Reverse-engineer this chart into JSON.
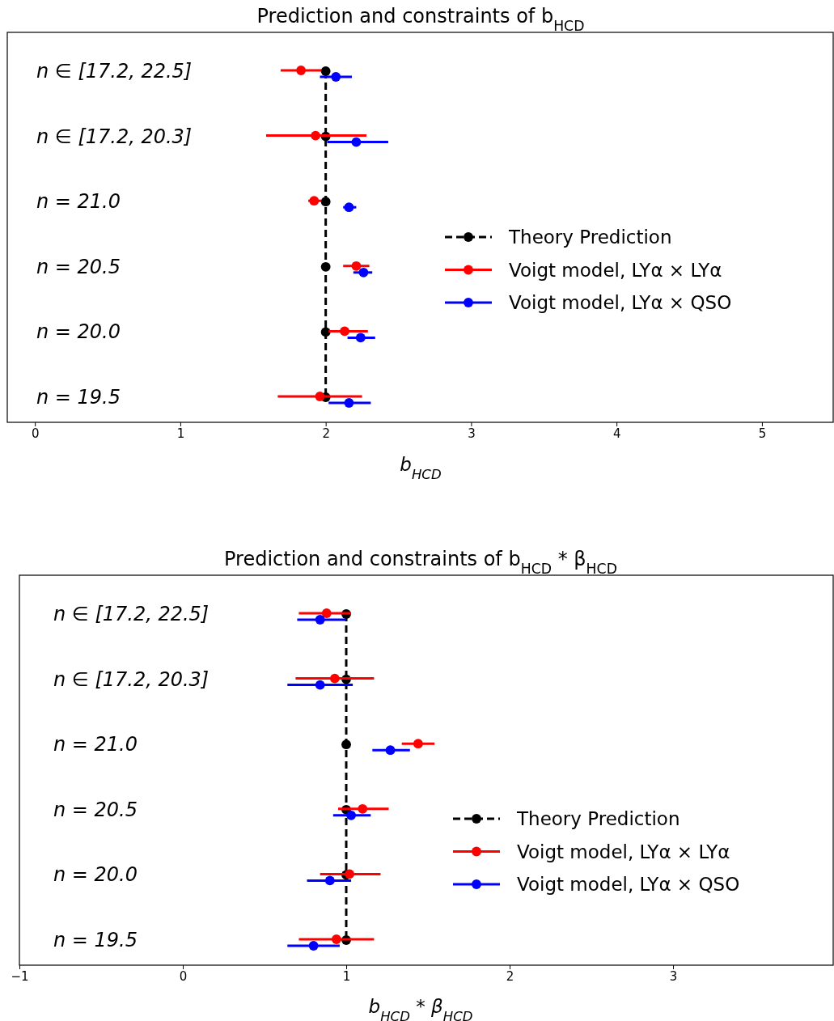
{
  "chart_data": [
    {
      "type": "scatter",
      "orientation": "horizontal",
      "title": "Prediction and constraints of b$_{HCD}$",
      "xlabel": "b$_{HCD}$",
      "categories": [
        "n ∈ [17.2, 22.5]",
        "n ∈ [17.2, 20.3]",
        "n = 21.0",
        "n = 20.5",
        "n = 20.0",
        "n = 19.5"
      ],
      "xlim": [
        -0.19,
        5.49
      ],
      "xticks": [
        0,
        1,
        2,
        3,
        4,
        5
      ],
      "grid": false,
      "legend": "right",
      "marker": "circle",
      "series": [
        {
          "name": "Theory Prediction",
          "type": "line",
          "line_style": "dashed",
          "color": "#000000",
          "values": [
            2,
            2,
            2,
            2,
            2,
            2
          ]
        },
        {
          "name": "Voigt model, LYα × LYα",
          "color": "#ff0000",
          "values": [
            1.83,
            1.93,
            1.92,
            2.21,
            2.13,
            1.96
          ],
          "errors": [
            [
              1.69,
              1.97
            ],
            [
              1.59,
              2.28
            ],
            [
              1.88,
              1.97
            ],
            [
              2.12,
              2.3
            ],
            [
              2.02,
              2.29
            ],
            [
              1.67,
              2.25
            ]
          ]
        },
        {
          "name": "Voigt model, LYα × QSO",
          "color": "#0000ff",
          "values": [
            2.07,
            2.21,
            2.16,
            2.26,
            2.24,
            2.16
          ],
          "errors": [
            [
              1.96,
              2.18
            ],
            [
              2.01,
              2.43
            ],
            [
              2.12,
              2.21
            ],
            [
              2.19,
              2.32
            ],
            [
              2.15,
              2.34
            ],
            [
              2.02,
              2.31
            ]
          ]
        }
      ]
    },
    {
      "type": "scatter",
      "orientation": "horizontal",
      "title": "Prediction and constraints of b$_{HCD}$ * β$_{HCD}$",
      "xlabel": "b$_{HCD}$ * β$_{HCD}$",
      "categories": [
        "n ∈ [17.2, 22.5]",
        "n ∈ [17.2, 20.3]",
        "n = 21.0",
        "n = 20.5",
        "n = 20.0",
        "n = 19.5"
      ],
      "xlim": [
        -1,
        3.98
      ],
      "xticks": [
        {
          "value": -1,
          "label": "−1"
        },
        0,
        1,
        2,
        3
      ],
      "grid": false,
      "legend": "right",
      "marker": "circle",
      "series": [
        {
          "name": "Theory Prediction",
          "type": "line",
          "line_style": "dashed",
          "color": "#000000",
          "values": [
            1,
            1,
            1,
            1,
            1,
            1
          ]
        },
        {
          "name": "Voigt model, LYα × LYα",
          "color": "#ff0000",
          "values": [
            0.88,
            0.93,
            1.44,
            1.1,
            1.02,
            0.94
          ],
          "errors": [
            [
              0.71,
              1.03
            ],
            [
              0.69,
              1.17
            ],
            [
              1.34,
              1.54
            ],
            [
              0.95,
              1.26
            ],
            [
              0.84,
              1.21
            ],
            [
              0.71,
              1.17
            ]
          ]
        },
        {
          "name": "Voigt model, LYα × QSO",
          "color": "#0000ff",
          "values": [
            0.84,
            0.84,
            1.27,
            1.03,
            0.9,
            0.8
          ],
          "errors": [
            [
              0.7,
              1
            ],
            [
              0.64,
              1.04
            ],
            [
              1.16,
              1.39
            ],
            [
              0.92,
              1.15
            ],
            [
              0.76,
              1.03
            ],
            [
              0.64,
              0.96
            ]
          ]
        }
      ]
    }
  ]
}
